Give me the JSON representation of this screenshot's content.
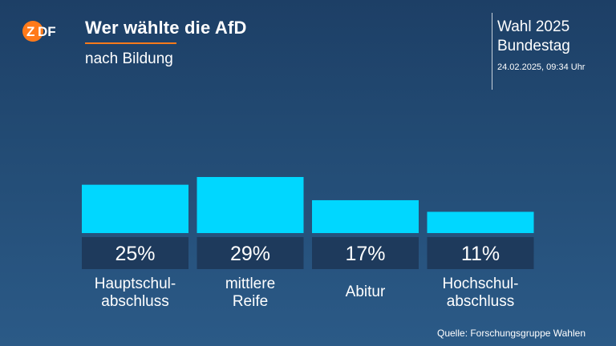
{
  "header": {
    "logo_text": "ZDF",
    "title": "Wer wählte die AfD",
    "subtitle": "nach Bildung",
    "election_line1": "Wahl 2025",
    "election_line2": "Bundestag",
    "timestamp": "24.02.2025, 09:34 Uhr"
  },
  "footer": {
    "source": "Quelle: Forschungsgruppe Wahlen"
  },
  "colors": {
    "bar": "#00d7ff",
    "label_box": "#1e3a5c",
    "accent": "#ff7a1a"
  },
  "chart_data": {
    "type": "bar",
    "title": "Wer wählte die AfD",
    "subtitle": "nach Bildung",
    "categories": [
      [
        "Hauptschul-",
        "abschluss"
      ],
      [
        "mittlere",
        "Reife"
      ],
      [
        "Abitur"
      ],
      [
        "Hochschul-",
        "abschluss"
      ]
    ],
    "values": [
      25,
      29,
      17,
      11
    ],
    "value_labels": [
      "25%",
      "29%",
      "17%",
      "11%"
    ],
    "unit": "%"
  }
}
